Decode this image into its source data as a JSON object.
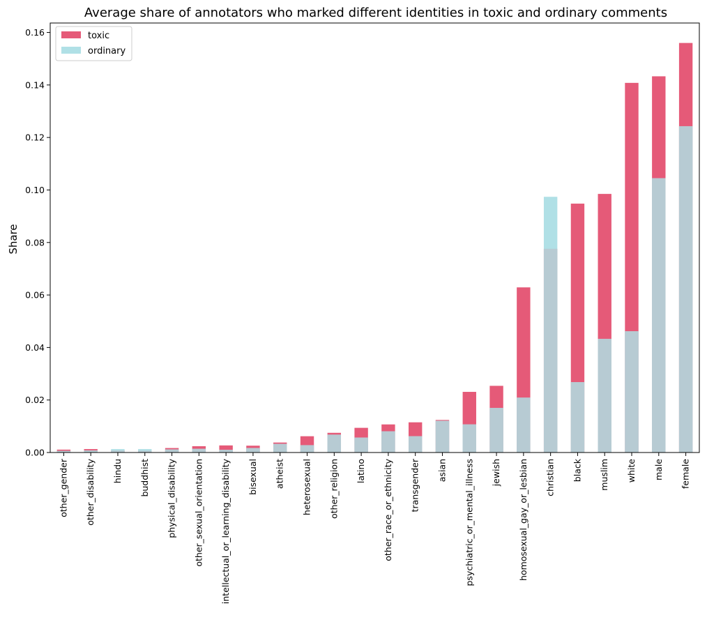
{
  "chart_data": {
    "type": "bar",
    "stacked": "overlay",
    "title": "Average share of annotators who marked different identities in toxic and ordinary comments",
    "xlabel": "",
    "ylabel": "Share",
    "ylim": [
      0,
      0.1636
    ],
    "yticks": [
      0.0,
      0.02,
      0.04,
      0.06,
      0.08,
      0.1,
      0.12,
      0.14,
      0.16
    ],
    "ytick_labels": [
      "0.00",
      "0.02",
      "0.04",
      "0.06",
      "0.08",
      "0.10",
      "0.12",
      "0.14",
      "0.16"
    ],
    "legend_position": "top-left",
    "grid": false,
    "categories": [
      "other_gender",
      "other_disability",
      "hindu",
      "buddhist",
      "physical_disability",
      "other_sexual_orientation",
      "intellectual_or_learning_disability",
      "bisexual",
      "atheist",
      "heterosexual",
      "other_religion",
      "latino",
      "other_race_or_ethnicity",
      "transgender",
      "asian",
      "psychiatric_or_mental_illness",
      "jewish",
      "homosexual_gay_or_lesbian",
      "christian",
      "black",
      "muslim",
      "white",
      "male",
      "female"
    ],
    "series": [
      {
        "name": "toxic",
        "color": "#e55a78",
        "values": [
          0.0011,
          0.0013,
          0.0008,
          0.0007,
          0.0017,
          0.0024,
          0.0027,
          0.0026,
          0.0038,
          0.0062,
          0.0075,
          0.0094,
          0.0107,
          0.0115,
          0.0124,
          0.0231,
          0.0254,
          0.0629,
          0.0776,
          0.0948,
          0.0985,
          0.1408,
          0.1433,
          0.156
        ]
      },
      {
        "name": "ordinary",
        "color": "#b0e0e6",
        "values": [
          0.0006,
          0.0008,
          0.0013,
          0.0013,
          0.0012,
          0.0014,
          0.001,
          0.0017,
          0.0033,
          0.0028,
          0.0068,
          0.0057,
          0.0081,
          0.0062,
          0.0121,
          0.0107,
          0.017,
          0.0209,
          0.0974,
          0.0268,
          0.0433,
          0.0462,
          0.1045,
          0.1243
        ]
      }
    ],
    "overlap_color": "#b7cbd3"
  }
}
